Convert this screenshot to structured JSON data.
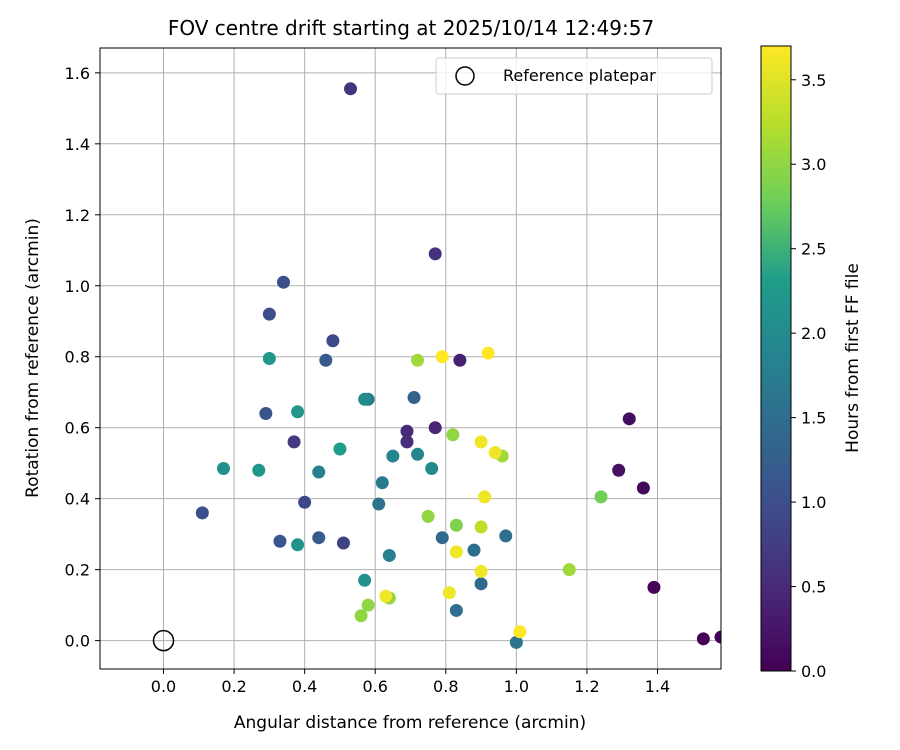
{
  "chart_data": {
    "type": "scatter",
    "title": "FOV centre drift starting at 2025/10/14 12:49:57",
    "xlabel": "Angular distance from reference (arcmin)",
    "ylabel": "Rotation from reference (arcmin)",
    "xlim": [
      -0.18,
      1.58
    ],
    "ylim": [
      -0.08,
      1.67
    ],
    "xticks": [
      0.0,
      0.2,
      0.4,
      0.6,
      0.8,
      1.0,
      1.2,
      1.4
    ],
    "xtick_labels": [
      "0.0",
      "0.2",
      "0.4",
      "0.6",
      "0.8",
      "1.0",
      "1.2",
      "1.4"
    ],
    "yticks": [
      0.0,
      0.2,
      0.4,
      0.6,
      0.8,
      1.0,
      1.2,
      1.4,
      1.6
    ],
    "ytick_labels": [
      "0.0",
      "0.2",
      "0.4",
      "0.6",
      "0.8",
      "1.0",
      "1.2",
      "1.4",
      "1.6"
    ],
    "grid": true,
    "legend": {
      "placement": "top-right",
      "entries": [
        "Reference platepar"
      ]
    },
    "reference_point": {
      "x": 0.0,
      "y": 0.0,
      "label": "Reference platepar"
    },
    "colorbar": {
      "label": "Hours from first FF file",
      "colormap": "viridis",
      "range": [
        0.0,
        3.7
      ],
      "ticks": [
        0.0,
        0.5,
        1.0,
        1.5,
        2.0,
        2.5,
        3.0,
        3.5
      ],
      "tick_labels": [
        "0.0",
        "0.5",
        "1.0",
        "1.5",
        "2.0",
        "2.5",
        "3.0",
        "3.5"
      ]
    },
    "points": [
      {
        "x": 1.53,
        "y": 0.005,
        "c": 0.02
      },
      {
        "x": 1.58,
        "y": 0.01,
        "c": 0.03
      },
      {
        "x": 1.39,
        "y": 0.15,
        "c": 0.05
      },
      {
        "x": 1.36,
        "y": 0.43,
        "c": 0.1
      },
      {
        "x": 1.32,
        "y": 0.625,
        "c": 0.15
      },
      {
        "x": 1.29,
        "y": 0.48,
        "c": 0.2
      },
      {
        "x": 0.84,
        "y": 0.79,
        "c": 0.4
      },
      {
        "x": 0.77,
        "y": 0.6,
        "c": 0.45
      },
      {
        "x": 0.69,
        "y": 0.59,
        "c": 0.5
      },
      {
        "x": 0.69,
        "y": 0.56,
        "c": 0.55
      },
      {
        "x": 0.77,
        "y": 1.09,
        "c": 0.6
      },
      {
        "x": 0.53,
        "y": 1.555,
        "c": 0.65
      },
      {
        "x": 0.37,
        "y": 0.56,
        "c": 0.7
      },
      {
        "x": 0.51,
        "y": 0.275,
        "c": 0.8
      },
      {
        "x": 0.4,
        "y": 0.39,
        "c": 0.9
      },
      {
        "x": 0.48,
        "y": 0.845,
        "c": 0.9
      },
      {
        "x": 0.34,
        "y": 1.01,
        "c": 1.0
      },
      {
        "x": 0.3,
        "y": 0.92,
        "c": 1.0
      },
      {
        "x": 0.29,
        "y": 0.64,
        "c": 1.1
      },
      {
        "x": 0.33,
        "y": 0.28,
        "c": 1.1
      },
      {
        "x": 0.44,
        "y": 0.29,
        "c": 1.2
      },
      {
        "x": 0.11,
        "y": 0.36,
        "c": 1.0
      },
      {
        "x": 0.46,
        "y": 0.79,
        "c": 1.2
      },
      {
        "x": 0.71,
        "y": 0.685,
        "c": 1.3
      },
      {
        "x": 0.79,
        "y": 0.29,
        "c": 1.4
      },
      {
        "x": 0.83,
        "y": 0.085,
        "c": 1.5
      },
      {
        "x": 0.9,
        "y": 0.16,
        "c": 1.4
      },
      {
        "x": 0.88,
        "y": 0.255,
        "c": 1.5
      },
      {
        "x": 0.97,
        "y": 0.295,
        "c": 1.5
      },
      {
        "x": 1.0,
        "y": -0.005,
        "c": 1.6
      },
      {
        "x": 0.61,
        "y": 0.385,
        "c": 1.6
      },
      {
        "x": 0.62,
        "y": 0.445,
        "c": 1.7
      },
      {
        "x": 0.58,
        "y": 0.68,
        "c": 1.7
      },
      {
        "x": 0.64,
        "y": 0.24,
        "c": 1.8
      },
      {
        "x": 0.44,
        "y": 0.475,
        "c": 1.8
      },
      {
        "x": 0.65,
        "y": 0.52,
        "c": 1.9
      },
      {
        "x": 0.72,
        "y": 0.525,
        "c": 1.9
      },
      {
        "x": 0.76,
        "y": 0.485,
        "c": 2.0
      },
      {
        "x": 0.57,
        "y": 0.68,
        "c": 2.0
      },
      {
        "x": 0.57,
        "y": 0.17,
        "c": 2.1
      },
      {
        "x": 0.38,
        "y": 0.27,
        "c": 2.1
      },
      {
        "x": 0.17,
        "y": 0.485,
        "c": 2.1
      },
      {
        "x": 0.27,
        "y": 0.48,
        "c": 2.2
      },
      {
        "x": 0.38,
        "y": 0.645,
        "c": 2.2
      },
      {
        "x": 0.3,
        "y": 0.795,
        "c": 2.2
      },
      {
        "x": 0.5,
        "y": 0.54,
        "c": 2.3
      },
      {
        "x": 1.24,
        "y": 0.405,
        "c": 2.8
      },
      {
        "x": 0.83,
        "y": 0.325,
        "c": 2.9
      },
      {
        "x": 0.82,
        "y": 0.58,
        "c": 3.0
      },
      {
        "x": 0.75,
        "y": 0.35,
        "c": 3.0
      },
      {
        "x": 0.64,
        "y": 0.12,
        "c": 3.0
      },
      {
        "x": 0.58,
        "y": 0.1,
        "c": 3.0
      },
      {
        "x": 0.56,
        "y": 0.07,
        "c": 3.0
      },
      {
        "x": 0.72,
        "y": 0.79,
        "c": 3.1
      },
      {
        "x": 0.96,
        "y": 0.52,
        "c": 3.1
      },
      {
        "x": 1.15,
        "y": 0.2,
        "c": 3.1
      },
      {
        "x": 0.9,
        "y": 0.32,
        "c": 3.3
      },
      {
        "x": 0.63,
        "y": 0.125,
        "c": 3.6
      },
      {
        "x": 0.81,
        "y": 0.135,
        "c": 3.6
      },
      {
        "x": 0.83,
        "y": 0.25,
        "c": 3.6
      },
      {
        "x": 0.9,
        "y": 0.195,
        "c": 3.6
      },
      {
        "x": 0.91,
        "y": 0.405,
        "c": 3.6
      },
      {
        "x": 0.9,
        "y": 0.56,
        "c": 3.6
      },
      {
        "x": 0.94,
        "y": 0.53,
        "c": 3.6
      },
      {
        "x": 0.79,
        "y": 0.8,
        "c": 3.7
      },
      {
        "x": 0.92,
        "y": 0.81,
        "c": 3.7
      },
      {
        "x": 1.01,
        "y": 0.025,
        "c": 3.7
      }
    ]
  },
  "colors": {
    "viridis": [
      "#440154",
      "#482777",
      "#3f4a8a",
      "#31678e",
      "#26838f",
      "#1f9d8a",
      "#6cce5a",
      "#b6de2b",
      "#fee825"
    ],
    "grid": "#b0b0b0",
    "axis": "#000000"
  }
}
